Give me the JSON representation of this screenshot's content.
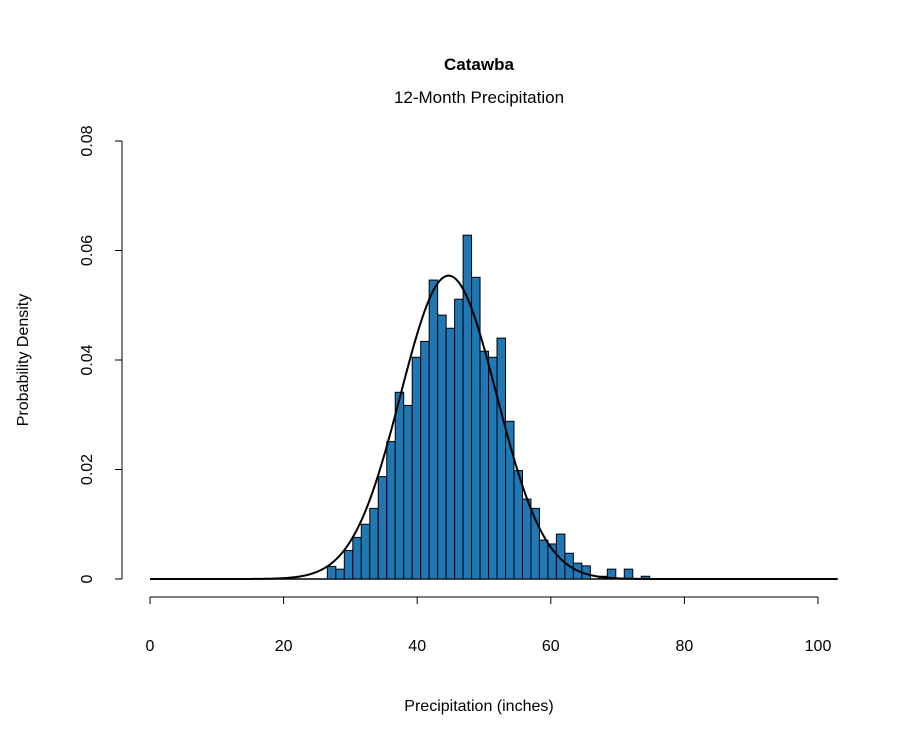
{
  "chart_data": {
    "type": "bar",
    "title": "Catawba",
    "subtitle": "12-Month Precipitation",
    "xlabel": "Precipitation (inches)",
    "ylabel": "Probability Density",
    "xlim": [
      0,
      100
    ],
    "ylim": [
      0,
      0.08
    ],
    "x_ticks": [
      "0",
      "20",
      "40",
      "60",
      "80",
      "100"
    ],
    "y_ticks": [
      "0",
      "0.02",
      "0.04",
      "0.06",
      "0.08"
    ],
    "grid": false,
    "bar_color": "#1f77b4",
    "bin_start": 26.55,
    "bin_width": 1.27,
    "values": [
      0.0023,
      0.0018,
      0.0052,
      0.0076,
      0.01,
      0.0129,
      0.0187,
      0.0251,
      0.0341,
      0.0317,
      0.0405,
      0.0434,
      0.0546,
      0.0482,
      0.0458,
      0.0511,
      0.0628,
      0.0551,
      0.0416,
      0.0405,
      0.044,
      0.0288,
      0.0198,
      0.0146,
      0.0129,
      0.0071,
      0.0064,
      0.0082,
      0.0047,
      0.0029,
      0.0024,
      0,
      0.0005,
      0.0018,
      0,
      0.0018,
      0,
      0.0005
    ],
    "fitted_curve": {
      "type": "normal",
      "mean": 44.7,
      "sd": 7.2,
      "x_range": [
        0,
        103
      ]
    }
  }
}
